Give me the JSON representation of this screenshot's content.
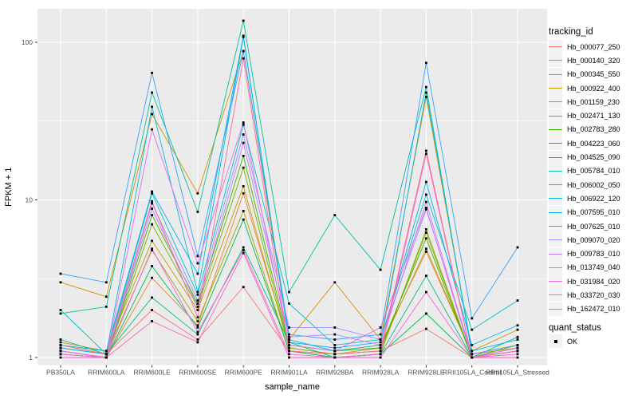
{
  "figure": {
    "bg": "#FFFFFF",
    "panel_bg": "#EBEBEB",
    "grid_color": "#FFFFFF",
    "tick_color": "#333333",
    "tick_label_color": "#4D4D4D",
    "axis_title_color": "#000000",
    "point_color": "#000000"
  },
  "chart_data": {
    "type": "line",
    "title": "",
    "xlabel": "sample_name",
    "ylabel": "FPKM + 1",
    "y_scale": "log10",
    "y_ticks": [
      "1",
      "10",
      "100"
    ],
    "y_minor_log": [
      0.5,
      1.5
    ],
    "ylim_log": [
      -0.048,
      2.213
    ],
    "grid": true,
    "legend_position": "right",
    "categories": [
      "PB350LA",
      "RRIM600LA",
      "RRIM600LE",
      "RRIM600SE",
      "RRIM600PE",
      "RRIM901LA",
      "RRIM928BA",
      "RRIM928LA",
      "RRIM928LE",
      "RRII105LA_Control",
      "RRII105LA_Stressed"
    ],
    "series": [
      {
        "name": "Hb_000077_250",
        "color": "#F8766D",
        "values": [
          1.2,
          1.05,
          2.0,
          1.3,
          2.8,
          1.1,
          1.05,
          1.1,
          1.52,
          1.0,
          1.1
        ]
      },
      {
        "name": "Hb_000140_320",
        "color": "#EA8331",
        "values": [
          1.1,
          1.0,
          3.2,
          1.6,
          11.0,
          1.2,
          1.1,
          1.2,
          4.7,
          1.05,
          1.2
        ]
      },
      {
        "name": "Hb_000345_550",
        "color": "#D89000",
        "values": [
          3.0,
          2.43,
          35.0,
          11.0,
          88.0,
          1.3,
          3.0,
          1.3,
          45.0,
          1.1,
          1.5
        ]
      },
      {
        "name": "Hb_000922_400",
        "color": "#C09B00",
        "values": [
          1.25,
          1.1,
          5.5,
          2.0,
          12.2,
          1.15,
          1.05,
          1.15,
          4.9,
          1.05,
          1.15
        ]
      },
      {
        "name": "Hb_001159_230",
        "color": "#A3A500",
        "values": [
          1.15,
          1.05,
          4.8,
          1.7,
          8.5,
          1.1,
          1.0,
          1.05,
          6.5,
          1.0,
          1.1
        ]
      },
      {
        "name": "Hb_002471_130",
        "color": "#7CAE00",
        "values": [
          1.1,
          1.0,
          7.0,
          2.1,
          16.0,
          1.15,
          1.05,
          1.1,
          6.2,
          1.0,
          1.15
        ]
      },
      {
        "name": "Hb_002783_280",
        "color": "#39B600",
        "values": [
          1.05,
          1.0,
          8.0,
          2.2,
          19.0,
          1.2,
          1.1,
          1.15,
          5.7,
          1.0,
          1.2
        ]
      },
      {
        "name": "Hb_004223_060",
        "color": "#00BB4E",
        "values": [
          1.1,
          1.0,
          3.8,
          1.55,
          7.5,
          1.1,
          1.0,
          1.05,
          1.9,
          1.0,
          1.1
        ]
      },
      {
        "name": "Hb_004525_090",
        "color": "#00BF7D",
        "values": [
          1.3,
          1.05,
          2.4,
          1.4,
          5.0,
          1.25,
          1.0,
          1.05,
          3.3,
          1.0,
          1.35
        ]
      },
      {
        "name": "Hb_005784_010",
        "color": "#00C1A3",
        "values": [
          1.9,
          2.1,
          48.0,
          8.4,
          137.0,
          2.6,
          8.0,
          3.6,
          52.0,
          1.05,
          1.2
        ]
      },
      {
        "name": "Hb_006002_050",
        "color": "#00BFC4",
        "values": [
          2.0,
          1.05,
          11.0,
          2.5,
          30.0,
          2.2,
          1.2,
          1.3,
          10.8,
          1.5,
          2.3
        ]
      },
      {
        "name": "Hb_006922_120",
        "color": "#00BAE0",
        "values": [
          1.15,
          1.05,
          39.0,
          2.6,
          108.0,
          1.3,
          1.1,
          1.2,
          48.0,
          1.1,
          1.3
        ]
      },
      {
        "name": "Hb_007595_010",
        "color": "#00B0F6",
        "values": [
          1.2,
          1.1,
          11.3,
          3.4,
          110.0,
          1.25,
          1.15,
          1.25,
          13.0,
          1.2,
          1.6
        ]
      },
      {
        "name": "Hb_007625_010",
        "color": "#35A2FF",
        "values": [
          3.4,
          3.0,
          64.0,
          4.4,
          88.0,
          1.4,
          1.3,
          1.4,
          74.0,
          1.77,
          5.0
        ]
      },
      {
        "name": "Hb_009070_020",
        "color": "#9590FF",
        "values": [
          1.1,
          1.0,
          9.5,
          2.3,
          26.0,
          1.55,
          1.55,
          1.3,
          8.7,
          1.05,
          1.2
        ]
      },
      {
        "name": "Hb_009783_010",
        "color": "#C77CFF",
        "values": [
          1.05,
          1.0,
          8.8,
          2.1,
          23.0,
          1.35,
          1.4,
          1.2,
          9.7,
          1.0,
          1.15
        ]
      },
      {
        "name": "Hb_013749_040",
        "color": "#E76BF3",
        "values": [
          1.1,
          1.0,
          28.0,
          3.96,
          31.0,
          1.2,
          1.1,
          1.55,
          8.9,
          1.0,
          1.1
        ]
      },
      {
        "name": "Hb_031984_020",
        "color": "#FA62DB",
        "values": [
          1.0,
          1.0,
          4.9,
          1.45,
          4.8,
          1.05,
          1.0,
          1.0,
          2.6,
          1.0,
          1.05
        ]
      },
      {
        "name": "Hb_033720_030",
        "color": "#FF62BC",
        "values": [
          1.05,
          1.0,
          1.7,
          1.25,
          4.6,
          1.0,
          1.0,
          1.05,
          19.6,
          1.0,
          1.0
        ]
      },
      {
        "name": "Hb_162472_010",
        "color": "#FF6A98",
        "values": [
          1.2,
          1.05,
          9.8,
          1.8,
          79.0,
          1.1,
          1.05,
          1.1,
          20.5,
          1.0,
          1.1
        ]
      }
    ],
    "legend": {
      "tracking_title": "tracking_id",
      "quant_title": "quant_status",
      "quant_items": [
        "OK"
      ]
    }
  }
}
